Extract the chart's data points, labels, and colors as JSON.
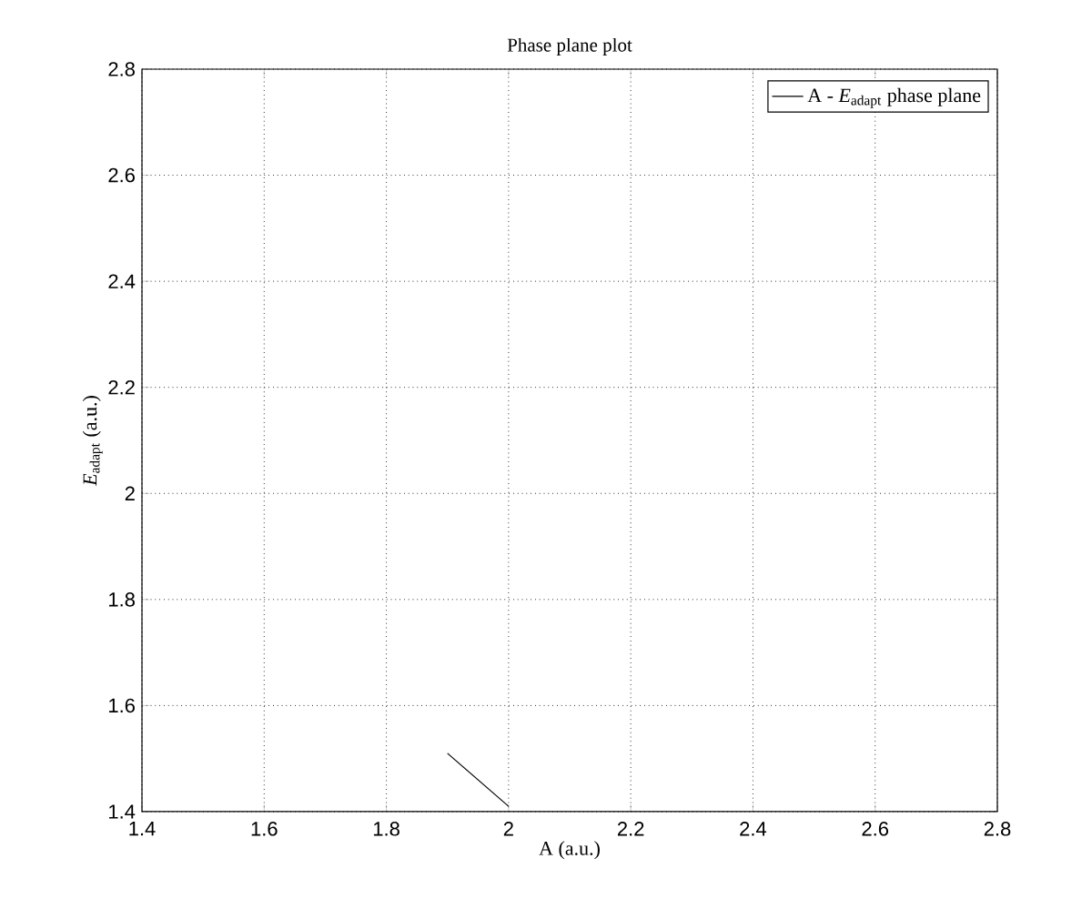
{
  "chart_data": {
    "type": "line",
    "title": "Phase plane plot",
    "xlabel": "A (a.u.)",
    "ylabel": "*E*$_{adapt}$ (a.u.)",
    "series": [
      {
        "name": "A - *E*$_{adapt}$ phase plane",
        "color": "#000000",
        "x": [
          1.9,
          2.0
        ],
        "values": [
          1.51,
          1.41
        ]
      }
    ],
    "xlim": [
      1.4,
      2.8
    ],
    "ylim": [
      1.4,
      2.8
    ],
    "xticks": [
      1.4,
      1.6,
      1.8,
      2,
      2.2,
      2.4,
      2.6,
      2.8
    ],
    "yticks": [
      1.4,
      1.6,
      1.8,
      2,
      2.2,
      2.4,
      2.6,
      2.8
    ],
    "grid": true,
    "legend": "top right",
    "marker": "none",
    "line_style": "solid"
  }
}
